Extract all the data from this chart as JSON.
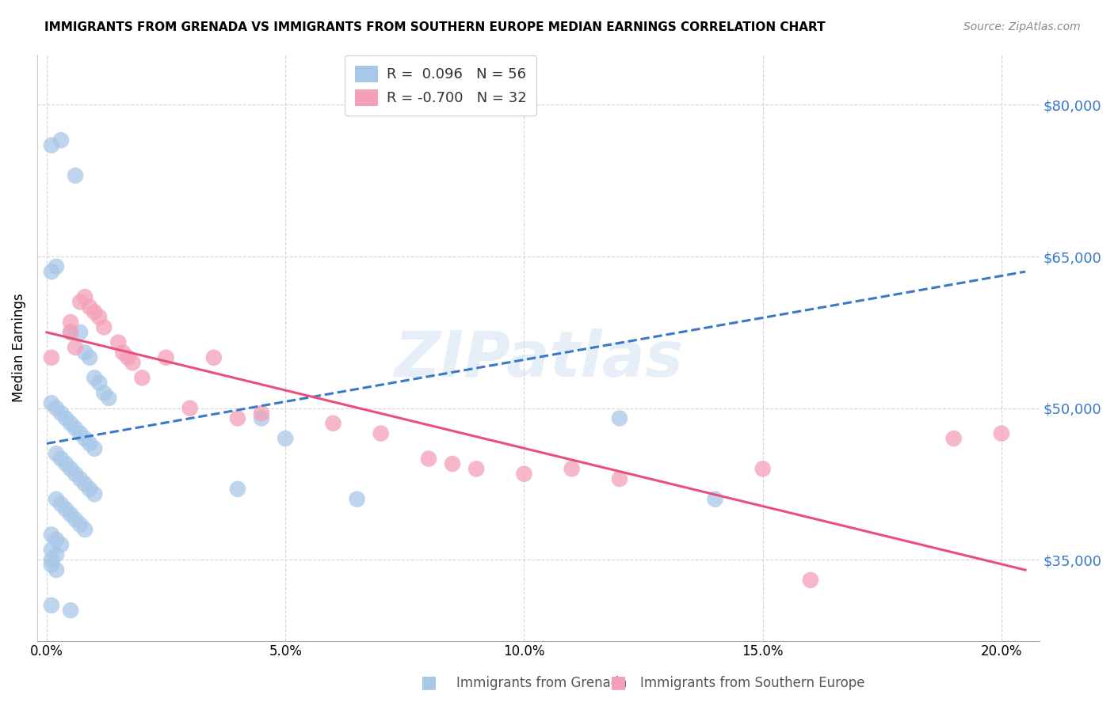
{
  "title": "IMMIGRANTS FROM GRENADA VS IMMIGRANTS FROM SOUTHERN EUROPE MEDIAN EARNINGS CORRELATION CHART",
  "source": "Source: ZipAtlas.com",
  "ylabel": "Median Earnings",
  "xlabel_ticks": [
    "0.0%",
    "5.0%",
    "10.0%",
    "15.0%",
    "20.0%"
  ],
  "xlabel_vals": [
    0.0,
    0.05,
    0.1,
    0.15,
    0.2
  ],
  "ytick_vals": [
    35000,
    50000,
    65000,
    80000
  ],
  "ytick_labels": [
    "$35,000",
    "$50,000",
    "$65,000",
    "$80,000"
  ],
  "ymin": 27000,
  "ymax": 85000,
  "xmin": -0.002,
  "xmax": 0.208,
  "blue_color": "#a8c8e8",
  "pink_color": "#f4a0b8",
  "blue_line_color": "#3a78c8",
  "pink_line_color": "#e8507a",
  "watermark": "ZIPatlas",
  "blue_scatter": [
    [
      0.001,
      76000
    ],
    [
      0.003,
      76500
    ],
    [
      0.006,
      73000
    ],
    [
      0.002,
      64000
    ],
    [
      0.001,
      63500
    ],
    [
      0.005,
      57500
    ],
    [
      0.007,
      57500
    ],
    [
      0.008,
      55500
    ],
    [
      0.009,
      55000
    ],
    [
      0.01,
      53000
    ],
    [
      0.011,
      52500
    ],
    [
      0.012,
      51500
    ],
    [
      0.013,
      51000
    ],
    [
      0.001,
      50500
    ],
    [
      0.002,
      50000
    ],
    [
      0.003,
      49500
    ],
    [
      0.004,
      49000
    ],
    [
      0.005,
      48500
    ],
    [
      0.006,
      48000
    ],
    [
      0.007,
      47500
    ],
    [
      0.008,
      47000
    ],
    [
      0.009,
      46500
    ],
    [
      0.01,
      46000
    ],
    [
      0.002,
      45500
    ],
    [
      0.003,
      45000
    ],
    [
      0.004,
      44500
    ],
    [
      0.005,
      44000
    ],
    [
      0.006,
      43500
    ],
    [
      0.007,
      43000
    ],
    [
      0.008,
      42500
    ],
    [
      0.009,
      42000
    ],
    [
      0.01,
      41500
    ],
    [
      0.002,
      41000
    ],
    [
      0.003,
      40500
    ],
    [
      0.004,
      40000
    ],
    [
      0.005,
      39500
    ],
    [
      0.006,
      39000
    ],
    [
      0.007,
      38500
    ],
    [
      0.008,
      38000
    ],
    [
      0.001,
      37500
    ],
    [
      0.002,
      37000
    ],
    [
      0.003,
      36500
    ],
    [
      0.001,
      36000
    ],
    [
      0.002,
      35500
    ],
    [
      0.001,
      35000
    ],
    [
      0.001,
      34500
    ],
    [
      0.002,
      34000
    ],
    [
      0.04,
      42000
    ],
    [
      0.045,
      49000
    ],
    [
      0.05,
      47000
    ],
    [
      0.065,
      41000
    ],
    [
      0.001,
      30500
    ],
    [
      0.005,
      30000
    ],
    [
      0.12,
      49000
    ],
    [
      0.14,
      41000
    ]
  ],
  "pink_scatter": [
    [
      0.001,
      55000
    ],
    [
      0.005,
      58500
    ],
    [
      0.005,
      57500
    ],
    [
      0.006,
      56000
    ],
    [
      0.007,
      60500
    ],
    [
      0.008,
      61000
    ],
    [
      0.009,
      60000
    ],
    [
      0.01,
      59500
    ],
    [
      0.011,
      59000
    ],
    [
      0.012,
      58000
    ],
    [
      0.015,
      56500
    ],
    [
      0.016,
      55500
    ],
    [
      0.017,
      55000
    ],
    [
      0.018,
      54500
    ],
    [
      0.02,
      53000
    ],
    [
      0.025,
      55000
    ],
    [
      0.03,
      50000
    ],
    [
      0.035,
      55000
    ],
    [
      0.04,
      49000
    ],
    [
      0.045,
      49500
    ],
    [
      0.06,
      48500
    ],
    [
      0.07,
      47500
    ],
    [
      0.08,
      45000
    ],
    [
      0.085,
      44500
    ],
    [
      0.09,
      44000
    ],
    [
      0.1,
      43500
    ],
    [
      0.11,
      44000
    ],
    [
      0.12,
      43000
    ],
    [
      0.15,
      44000
    ],
    [
      0.16,
      33000
    ],
    [
      0.19,
      47000
    ],
    [
      0.2,
      47500
    ]
  ],
  "blue_trendline": [
    [
      0.0,
      46500
    ],
    [
      0.205,
      63500
    ]
  ],
  "pink_trendline": [
    [
      0.0,
      57500
    ],
    [
      0.205,
      34000
    ]
  ]
}
